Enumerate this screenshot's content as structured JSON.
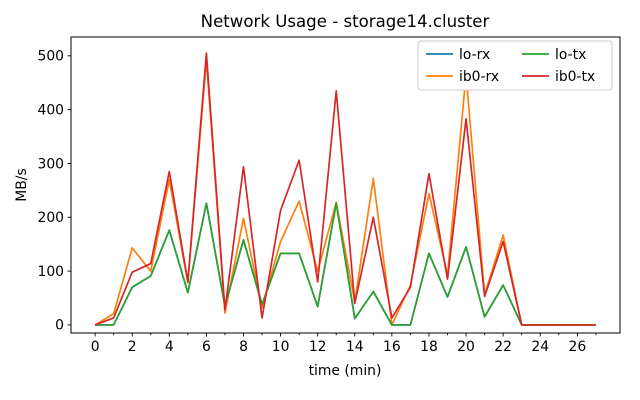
{
  "title": "Network Usage - storage14.cluster",
  "chart_data": {
    "type": "line",
    "title": "Network Usage - storage14.cluster",
    "xlabel": "time (min)",
    "ylabel": "MB/s",
    "x": [
      0,
      1,
      2,
      3,
      4,
      5,
      6,
      7,
      8,
      9,
      10,
      11,
      12,
      13,
      14,
      15,
      16,
      17,
      18,
      19,
      20,
      21,
      22,
      23,
      24,
      25,
      26,
      27
    ],
    "series": [
      {
        "name": "lo-rx",
        "color": "#1f77b4",
        "values": [
          0,
          0,
          70,
          91,
          176,
          60,
          226,
          35,
          158,
          38,
          133,
          133,
          34,
          226,
          12,
          62,
          0,
          0,
          133,
          52,
          145,
          15,
          74,
          0,
          0,
          0,
          0,
          0
        ]
      },
      {
        "name": "ib0-rx",
        "color": "#ff7f0e",
        "values": [
          0,
          21,
          143,
          100,
          270,
          78,
          492,
          22,
          198,
          32,
          155,
          230,
          99,
          228,
          43,
          272,
          0,
          74,
          244,
          93,
          465,
          56,
          167,
          0,
          0,
          0,
          0,
          0
        ]
      },
      {
        "name": "lo-tx",
        "color": "#2ca02c",
        "values": [
          0,
          0,
          70,
          91,
          176,
          60,
          226,
          35,
          158,
          38,
          133,
          133,
          34,
          226,
          12,
          62,
          0,
          0,
          133,
          52,
          145,
          15,
          74,
          0,
          0,
          0,
          0,
          0
        ]
      },
      {
        "name": "ib0-tx",
        "color": "#d62728",
        "values": [
          0,
          13,
          98,
          114,
          285,
          80,
          505,
          28,
          294,
          13,
          213,
          306,
          80,
          435,
          40,
          200,
          13,
          70,
          281,
          85,
          383,
          53,
          155,
          0,
          0,
          0,
          0,
          0
        ]
      }
    ],
    "legend_order": [
      "lo-rx",
      "ib0-rx",
      "lo-tx",
      "ib0-tx"
    ],
    "legend_position": "upper right",
    "legend_columns": 2,
    "grid": false,
    "xlim": [
      -1.3,
      28.3
    ],
    "ylim": [
      -15,
      535
    ],
    "yticks": [
      0,
      100,
      200,
      300,
      400,
      500
    ],
    "xticks_major": [
      0,
      2,
      4,
      6,
      8,
      10,
      12,
      14,
      16,
      18,
      20,
      22,
      24,
      26
    ],
    "xticks_minor": [
      1,
      3,
      5,
      7,
      9,
      11,
      13,
      15,
      17,
      19,
      21,
      23,
      25,
      27
    ]
  }
}
